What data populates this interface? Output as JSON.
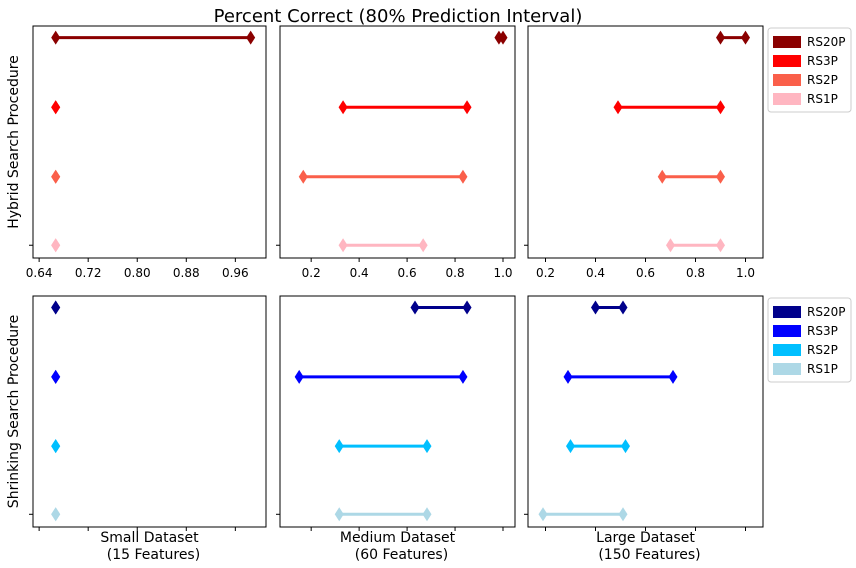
{
  "chart_data": {
    "type": "interval",
    "title": "Percent Correct (80% Prediction Interval)",
    "row_labels": [
      "Hybrid Search Procedure",
      "Shrinking Search Procedure"
    ],
    "column_labels": [
      "Small Dataset\n(15 Features)",
      "Medium Dataset\n(60 Features)",
      "Large Dataset\n(150 Features)"
    ],
    "column_xlim": [
      [
        0.63,
        1.01
      ],
      [
        0.07,
        1.05
      ],
      [
        0.13,
        1.07
      ]
    ],
    "column_ticks": [
      [
        0.64,
        0.72,
        0.8,
        0.88,
        0.96
      ],
      [
        0.2,
        0.4,
        0.6,
        0.8,
        1.0
      ],
      [
        0.2,
        0.4,
        0.6,
        0.8,
        1.0
      ]
    ],
    "grid": false,
    "legends": [
      {
        "placement": "right-top",
        "entries": [
          {
            "name": "RS20P",
            "color": "#8b0000"
          },
          {
            "name": "RS3P",
            "color": "#ff0000"
          },
          {
            "name": "RS2P",
            "color": "#fa5f4a"
          },
          {
            "name": "RS1P",
            "color": "#ffb6c1"
          }
        ]
      },
      {
        "placement": "right-bottom",
        "entries": [
          {
            "name": "RS20P",
            "color": "#00008b"
          },
          {
            "name": "RS3P",
            "color": "#0000ff"
          },
          {
            "name": "RS2P",
            "color": "#00bfff"
          },
          {
            "name": "RS1P",
            "color": "#add8e6"
          }
        ]
      }
    ],
    "panels": [
      {
        "row": 0,
        "col": 0,
        "series": [
          {
            "name": "RS20P",
            "low": 0.667,
            "high": 0.985
          },
          {
            "name": "RS3P",
            "low": 0.667,
            "high": 0.667
          },
          {
            "name": "RS2P",
            "low": 0.667,
            "high": 0.667
          },
          {
            "name": "RS1P",
            "low": 0.667,
            "high": 0.667
          }
        ]
      },
      {
        "row": 0,
        "col": 1,
        "series": [
          {
            "name": "RS20P",
            "low": 0.983,
            "high": 1.0
          },
          {
            "name": "RS3P",
            "low": 0.333,
            "high": 0.85
          },
          {
            "name": "RS2P",
            "low": 0.167,
            "high": 0.833
          },
          {
            "name": "RS1P",
            "low": 0.333,
            "high": 0.667
          }
        ]
      },
      {
        "row": 0,
        "col": 2,
        "series": [
          {
            "name": "RS20P",
            "low": 0.9,
            "high": 1.0
          },
          {
            "name": "RS3P",
            "low": 0.49,
            "high": 0.9
          },
          {
            "name": "RS2P",
            "low": 0.667,
            "high": 0.9
          },
          {
            "name": "RS1P",
            "low": 0.7,
            "high": 0.9
          }
        ]
      },
      {
        "row": 1,
        "col": 0,
        "series": [
          {
            "name": "RS20P",
            "low": 0.667,
            "high": 0.667
          },
          {
            "name": "RS3P",
            "low": 0.667,
            "high": 0.667
          },
          {
            "name": "RS2P",
            "low": 0.667,
            "high": 0.667
          },
          {
            "name": "RS1P",
            "low": 0.667,
            "high": 0.667
          }
        ]
      },
      {
        "row": 1,
        "col": 1,
        "series": [
          {
            "name": "RS20P",
            "low": 0.633,
            "high": 0.85
          },
          {
            "name": "RS3P",
            "low": 0.15,
            "high": 0.833
          },
          {
            "name": "RS2P",
            "low": 0.317,
            "high": 0.683
          },
          {
            "name": "RS1P",
            "low": 0.317,
            "high": 0.683
          }
        ]
      },
      {
        "row": 1,
        "col": 2,
        "series": [
          {
            "name": "RS20P",
            "low": 0.4,
            "high": 0.51
          },
          {
            "name": "RS3P",
            "low": 0.29,
            "high": 0.71
          },
          {
            "name": "RS2P",
            "low": 0.3,
            "high": 0.52
          },
          {
            "name": "RS1P",
            "low": 0.19,
            "high": 0.51
          }
        ]
      }
    ]
  }
}
